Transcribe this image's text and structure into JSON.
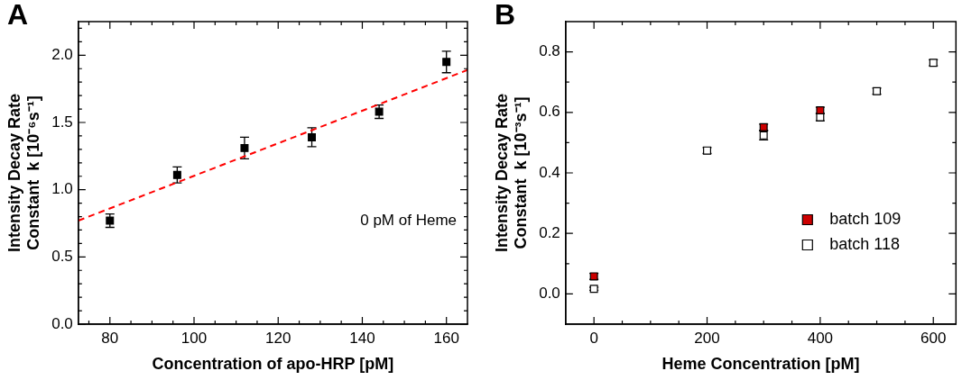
{
  "chart_data": [
    {
      "type": "scatter",
      "title": "A",
      "xlabel": "Concentration of apo-HRP [pM]",
      "ylabel": "Intensity Decay Rate\nConstant  k [10⁻⁶s⁻¹]",
      "xlim": [
        72.5,
        165
      ],
      "xticks": [
        {
          "value": 75,
          "label": null
        },
        80,
        {
          "value": 85,
          "label": null
        },
        {
          "value": 90,
          "label": null
        },
        {
          "value": 95,
          "label": null
        },
        100,
        {
          "value": 105,
          "label": null
        },
        {
          "value": 110,
          "label": null
        },
        {
          "value": 115,
          "label": null
        },
        120,
        {
          "value": 125,
          "label": null
        },
        {
          "value": 130,
          "label": null
        },
        {
          "value": 135,
          "label": null
        },
        140,
        {
          "value": 145,
          "label": null
        },
        {
          "value": 150,
          "label": null
        },
        {
          "value": 155,
          "label": null
        },
        160
      ],
      "ylim": [
        0,
        2.25
      ],
      "yticks": [
        {
          "value": 0,
          "label": "0.0"
        },
        {
          "value": 0.1,
          "label": null
        },
        {
          "value": 0.2,
          "label": null
        },
        {
          "value": 0.3,
          "label": null
        },
        {
          "value": 0.4,
          "label": null
        },
        0.5,
        {
          "value": 0.6,
          "label": null
        },
        {
          "value": 0.7,
          "label": null
        },
        {
          "value": 0.8,
          "label": null
        },
        {
          "value": 0.9,
          "label": null
        },
        {
          "value": 1,
          "label": "1.0"
        },
        {
          "value": 1.1,
          "label": null
        },
        {
          "value": 1.2,
          "label": null
        },
        {
          "value": 1.3,
          "label": null
        },
        {
          "value": 1.4,
          "label": null
        },
        1.5,
        {
          "value": 1.6,
          "label": null
        },
        {
          "value": 1.7,
          "label": null
        },
        {
          "value": 1.8,
          "label": null
        },
        {
          "value": 1.9,
          "label": null
        },
        {
          "value": 2,
          "label": "2.0"
        },
        {
          "value": 2.1,
          "label": null
        },
        {
          "value": 2.2,
          "label": null
        }
      ],
      "grid": false,
      "marker": "square",
      "annotations": [
        "0 pM of Heme"
      ],
      "series": [
        {
          "color": "#000000",
          "x": [
            80,
            96,
            112,
            128,
            144,
            160
          ],
          "values": [
            0.77,
            1.11,
            1.31,
            1.39,
            1.58,
            1.95
          ],
          "errors": [
            0.05,
            0.06,
            0.08,
            0.07,
            0.05,
            0.08
          ]
        },
        {
          "type": "line",
          "color": "#ff0000",
          "line_style": "dashed",
          "marker": "none",
          "x": [
            72.5,
            165
          ],
          "values": [
            0.77,
            1.89
          ]
        }
      ]
    },
    {
      "type": "scatter",
      "title": "B",
      "xlabel": "Heme Concentration [pM]",
      "ylabel": "Intensity Decay Rate\nConstant  k [10⁻³s⁻¹]",
      "xlim": [
        -50,
        640
      ],
      "xticks": [
        0,
        {
          "value": 50,
          "label": null
        },
        {
          "value": 100,
          "label": null
        },
        {
          "value": 150,
          "label": null
        },
        200,
        {
          "value": 250,
          "label": null
        },
        {
          "value": 300,
          "label": null
        },
        {
          "value": 350,
          "label": null
        },
        400,
        {
          "value": 450,
          "label": null
        },
        {
          "value": 500,
          "label": null
        },
        {
          "value": 550,
          "label": null
        },
        600
      ],
      "ylim": [
        -0.1,
        0.9
      ],
      "yticks": [
        {
          "value": 0,
          "label": "0.0"
        },
        {
          "value": 0.1,
          "label": null
        },
        0.2,
        {
          "value": 0.3,
          "label": null
        },
        0.4,
        {
          "value": 0.5,
          "label": null
        },
        0.6,
        {
          "value": 0.7,
          "label": null
        },
        0.8
      ],
      "grid": false,
      "marker": "square",
      "legend": "bottom right",
      "series": [
        {
          "name": "batch 109",
          "color": "#cc0000",
          "x": [
            0,
            300,
            400
          ],
          "values": [
            0.058,
            0.551,
            0.607
          ],
          "errors": [
            0.01,
            0.01,
            0.01
          ]
        },
        {
          "name": "batch 118",
          "color": "#ffffff",
          "x": [
            0,
            200,
            300,
            400,
            500,
            600
          ],
          "values": [
            0.017,
            0.474,
            0.524,
            0.584,
            0.67,
            0.764
          ],
          "errors": [
            0.005,
            0.01,
            0.015,
            0.012,
            0.01,
            0.01
          ]
        }
      ]
    }
  ]
}
